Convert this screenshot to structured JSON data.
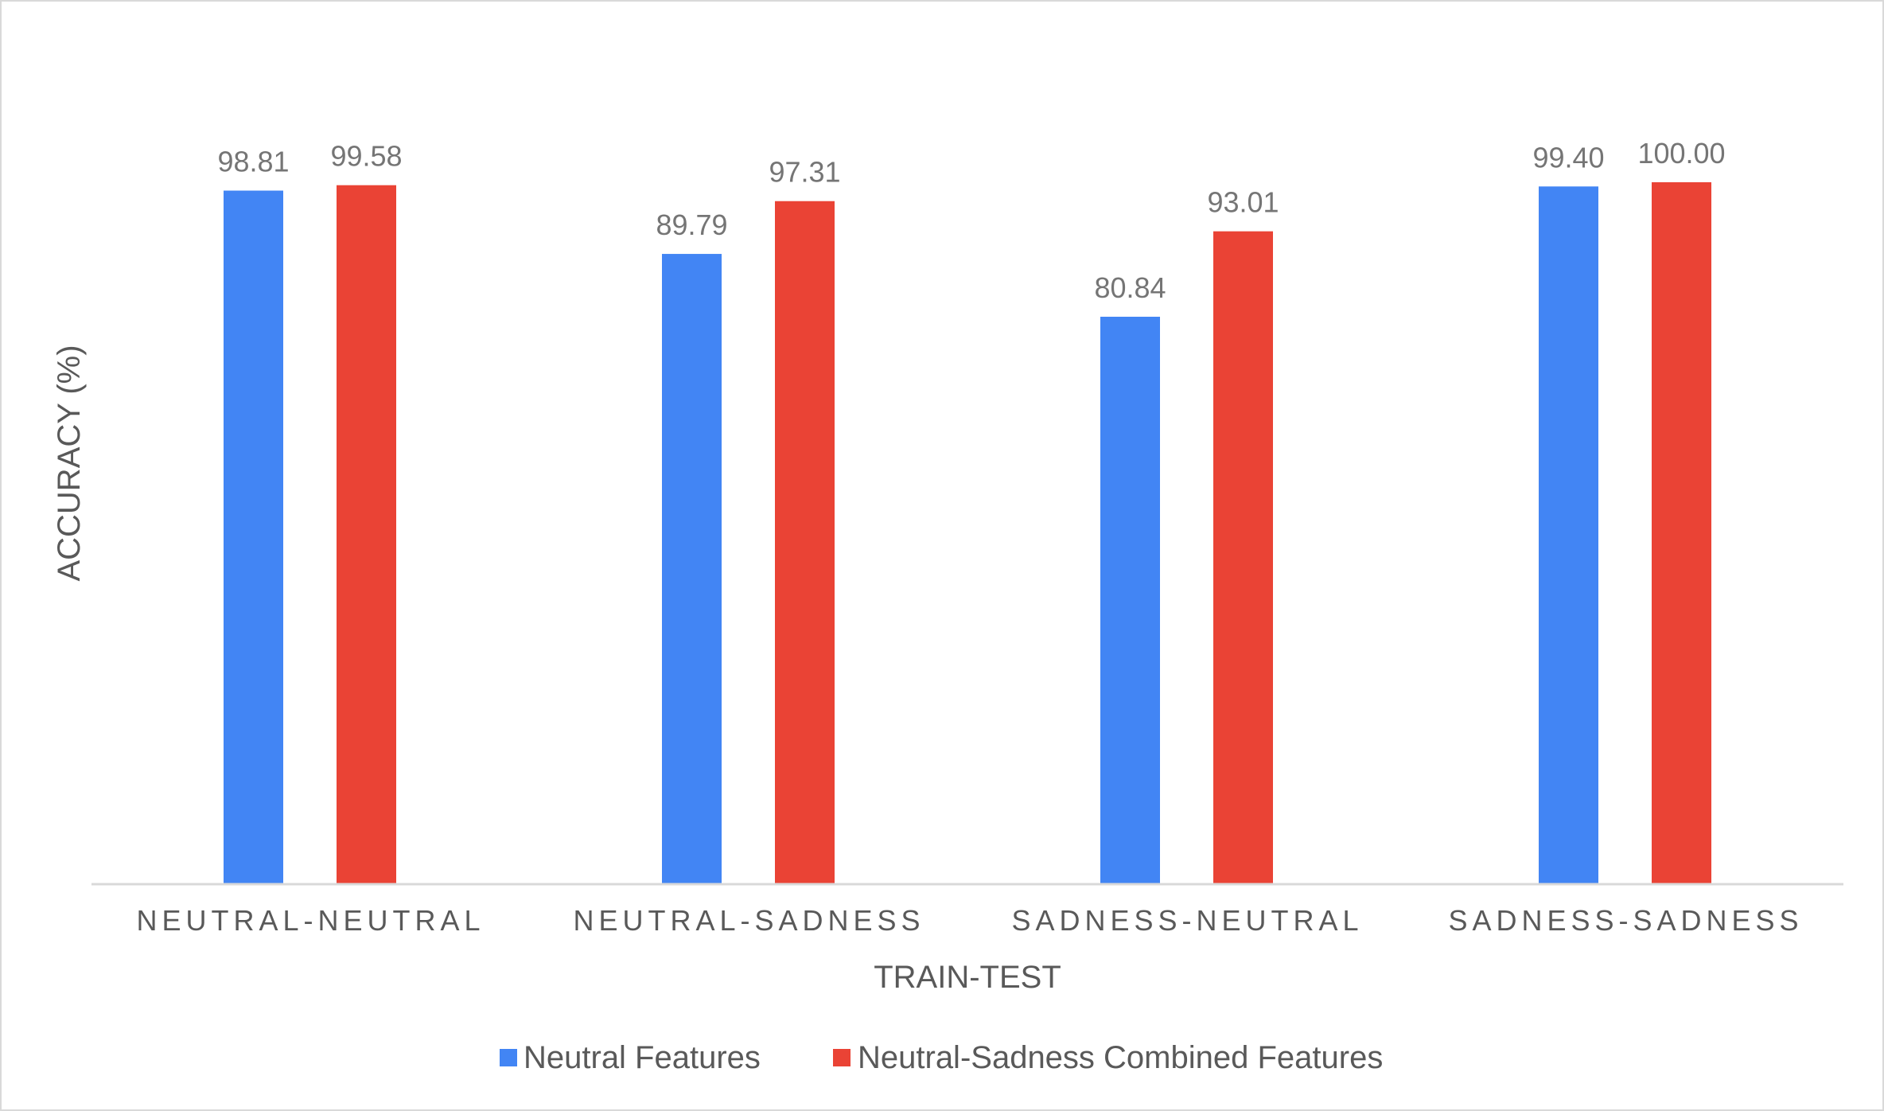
{
  "chart_data": {
    "type": "bar",
    "title": "",
    "xlabel": "TRAIN-TEST",
    "ylabel": "ACCURACY (%)",
    "categories": [
      "NEUTRAL-NEUTRAL",
      "NEUTRAL-SADNESS",
      "SADNESS-NEUTRAL",
      "SADNESS-SADNESS"
    ],
    "series": [
      {
        "name": "Neutral Features",
        "color": "#4285f4",
        "values": [
          98.81,
          89.79,
          80.84,
          99.4
        ],
        "labels": [
          "98.81",
          "89.79",
          "80.84",
          "99.40"
        ]
      },
      {
        "name": "Neutral-Sadness Combined Features",
        "color": "#ea4335",
        "values": [
          99.58,
          97.31,
          93.01,
          100.0
        ],
        "labels": [
          "99.58",
          "97.31",
          "93.01",
          "100.00"
        ]
      }
    ],
    "ylim": [
      0,
      100
    ],
    "grid": false,
    "legend_position": "bottom"
  }
}
